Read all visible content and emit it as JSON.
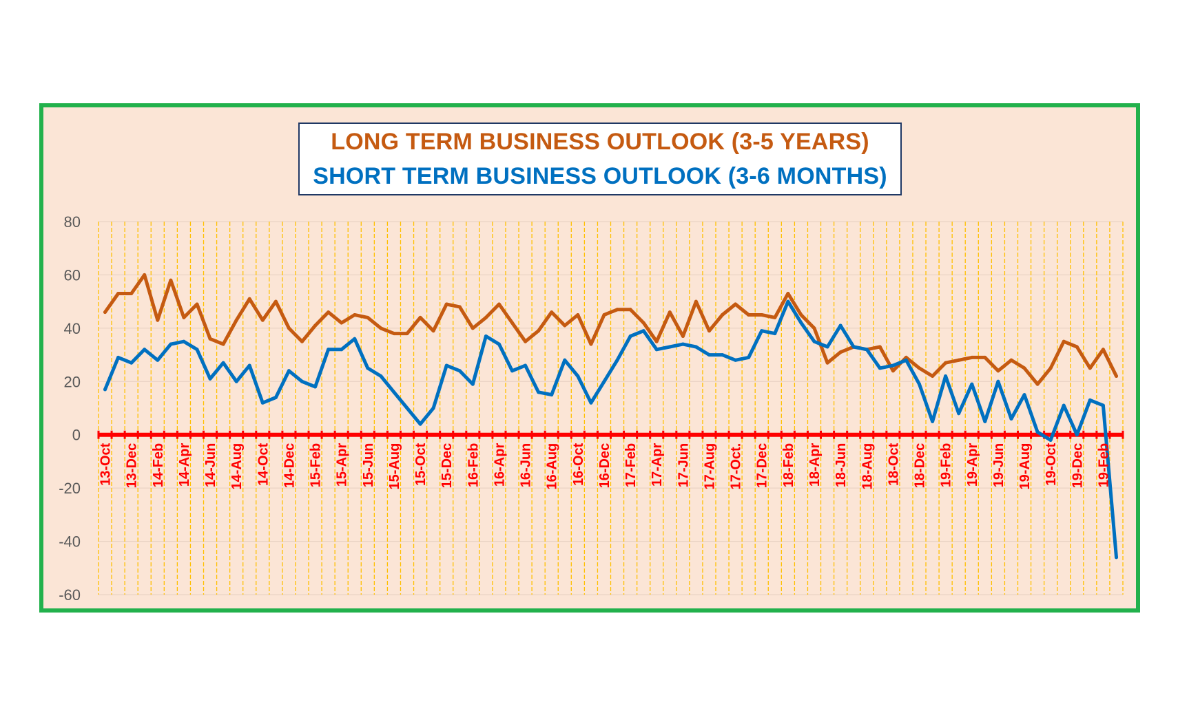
{
  "chart_data": {
    "type": "line",
    "title": "LONG TERM BUSINESS OUTLOOK (3-5 YEARS)",
    "subtitle": "SHORT TERM BUSINESS OUTLOOK (3-6 MONTHS)",
    "xlabel": "",
    "ylabel": "",
    "ylim": [
      -60,
      80
    ],
    "yticks": [
      "80",
      "60",
      "40",
      "20",
      "0",
      "-20",
      "-40",
      "-60"
    ],
    "x_tick_labels": [
      "13-Oct",
      "13-Dec",
      "14-Feb",
      "14-Apr",
      "14-Jun",
      "14-Aug",
      "14-Oct",
      "14-Dec",
      "15-Feb",
      "15-Apr",
      "15-Jun",
      "15-Aug",
      "15-Oct",
      "15-Dec",
      "16-Feb",
      "16-Apr",
      "16-Jun",
      "16-Aug",
      "16-Oct",
      "16-Dec",
      "17-Feb",
      "17-Apr",
      "17-Jun",
      "17-Aug",
      "17-Oct.",
      "17-Dec",
      "18-Feb",
      "18-Apr",
      "18-Jun",
      "18-Aug",
      "18-Oct",
      "18-Dec",
      "19-Feb",
      "19-Apr",
      "19-Jun",
      "19-Aug",
      "19-Oct",
      "19-Dec",
      "19-Feb"
    ],
    "grid": "vertical dashed",
    "legend": "none",
    "series": [
      {
        "values": [
          46,
          53,
          53,
          60,
          43,
          58,
          44,
          49,
          36,
          34,
          43,
          51,
          43,
          50,
          40,
          35,
          41,
          46,
          42,
          45,
          44,
          40,
          38,
          38,
          44,
          39,
          49,
          48,
          40,
          44,
          49,
          42,
          35,
          39,
          46,
          41,
          45,
          34,
          45,
          47,
          47,
          42,
          35,
          46,
          37,
          50,
          39,
          45,
          49,
          45,
          45,
          44,
          53,
          45,
          40,
          27,
          31,
          33,
          32,
          33,
          24,
          29,
          25,
          22,
          27,
          28,
          29,
          29,
          24,
          28,
          25,
          19,
          25,
          35,
          33,
          25,
          32,
          22
        ]
      },
      {
        "values": [
          17,
          29,
          27,
          32,
          28,
          34,
          35,
          32,
          21,
          27,
          20,
          26,
          12,
          14,
          24,
          20,
          18,
          32,
          32,
          36,
          25,
          22,
          16,
          10,
          4,
          10,
          26,
          24,
          19,
          37,
          34,
          24,
          26,
          16,
          15,
          28,
          22,
          12,
          20,
          28,
          37,
          39,
          32,
          33,
          34,
          33,
          30,
          30,
          28,
          29,
          39,
          38,
          50,
          42,
          35,
          33,
          41,
          33,
          32,
          25,
          26,
          28,
          19,
          5,
          22,
          8,
          19,
          5,
          20,
          6,
          15,
          1,
          -2,
          11,
          0,
          13,
          11,
          -46
        ]
      }
    ],
    "colors": {
      "long_term": "#c55a11",
      "short_term": "#0070c0",
      "zero_line": "#ff0000",
      "x_tick_labels": "#ff0000",
      "grid": "#ffc000",
      "frame_border": "#22b14c",
      "plot_background": "#fbe5d6"
    }
  }
}
